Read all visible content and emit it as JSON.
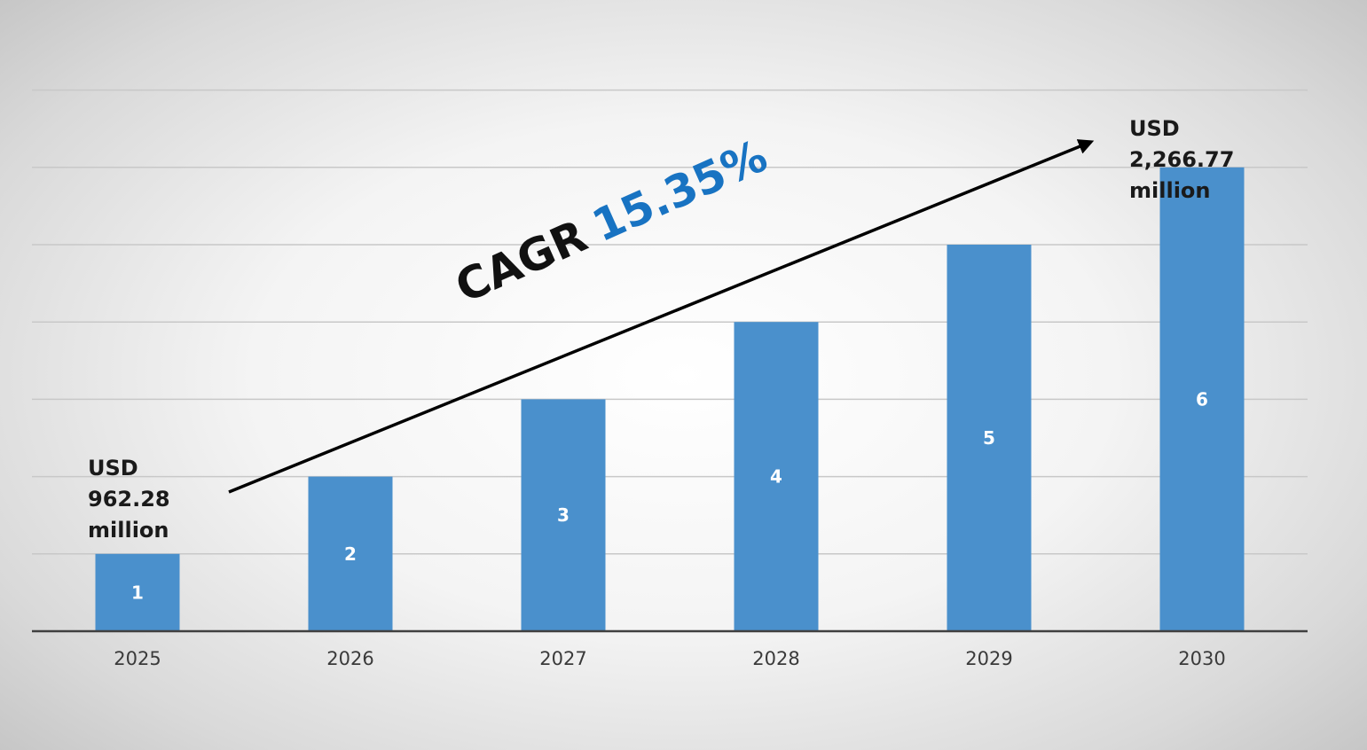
{
  "chart_data": {
    "type": "bar",
    "title": "",
    "xlabel": "",
    "ylabel": "",
    "categories": [
      "2025",
      "2026",
      "2027",
      "2028",
      "2029",
      "2030"
    ],
    "values": [
      1,
      2,
      3,
      4,
      5,
      6
    ],
    "data_labels": [
      "1",
      "2",
      "3",
      "4",
      "5",
      "6"
    ],
    "ylim": [
      0,
      7
    ],
    "grid": true,
    "bar_color": "#4a90cc",
    "legend": "none"
  },
  "annotations": {
    "start": {
      "line1": "USD",
      "line2": "962.28",
      "line3": "million"
    },
    "end": {
      "line1": "USD",
      "line2": "2,266.77",
      "line3": "million"
    },
    "cagr": {
      "label": "CAGR",
      "value": "15.35%",
      "value_color": "#1873c2"
    }
  }
}
